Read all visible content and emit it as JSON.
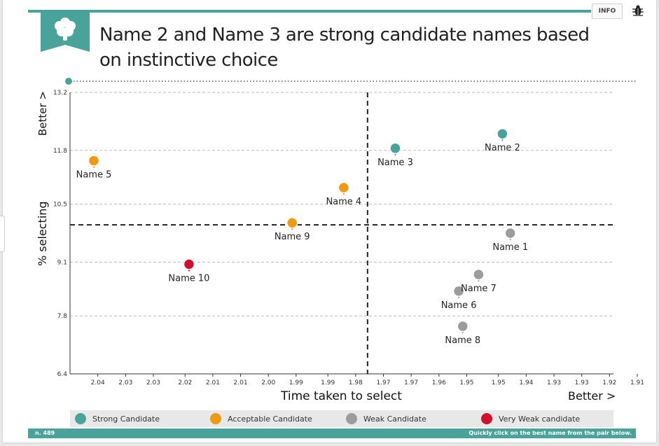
{
  "header": {
    "title_line1": "Name 2 and Name 3 are strong candidate names based",
    "title_line2": "on instinctive choice",
    "info_label": "INFO",
    "logo_icon": "brain-icon",
    "bug_icon": "bug-icon",
    "accent_color": "#4aa39a"
  },
  "footer": {
    "left_text": "n. 489",
    "right_text": "Quickly click on the best name from the pair below."
  },
  "legend": [
    {
      "label": "Strong Candidate",
      "color": "#4aa39a"
    },
    {
      "label": "Acceptable Candidate",
      "color": "#f09a11"
    },
    {
      "label": "Weak Candidate",
      "color": "#9c9c9c"
    },
    {
      "label": "Very Weak candidate",
      "color": "#d0102c"
    }
  ],
  "chart_data": {
    "type": "scatter",
    "title": "Name 2 and Name 3 are strong candidate names based on instinctive choice",
    "xlabel": "Time taken to select",
    "ylabel": "% selecting",
    "x_better_label": "Better >",
    "y_better_label": "Better >",
    "x_reversed": true,
    "xlim": [
      2.047,
      1.91
    ],
    "ylim": [
      6.4,
      13.2
    ],
    "x_ticks": [
      "2.04",
      "2.03",
      "2.03",
      "2.02",
      "2.01",
      "2.01",
      "2.00",
      "1.99",
      "1.99",
      "1.98",
      "1.97",
      "1.97",
      "1.96",
      "1.95",
      "1.95",
      "1.94",
      "1.93",
      "1.93",
      "1.92",
      "1.91"
    ],
    "x_tick_values": [
      2.04,
      2.033,
      2.026,
      2.018,
      2.011,
      2.004,
      1.997,
      1.99,
      1.982,
      1.975,
      1.968,
      1.961,
      1.954,
      1.947,
      1.939,
      1.932,
      1.925,
      1.918,
      1.911,
      1.904
    ],
    "y_ticks": [
      6.4,
      7.8,
      9.1,
      10.5,
      11.8,
      13.2
    ],
    "grid": true,
    "ref_lines": {
      "x": 1.972,
      "y": 10.0
    },
    "legend_position": "bottom",
    "points": [
      {
        "name": "Name 1",
        "x": 1.936,
        "y": 9.8,
        "category": "Weak Candidate"
      },
      {
        "name": "Name 2",
        "x": 1.938,
        "y": 12.2,
        "category": "Strong Candidate"
      },
      {
        "name": "Name 3",
        "x": 1.965,
        "y": 11.85,
        "category": "Strong Candidate"
      },
      {
        "name": "Name 4",
        "x": 1.978,
        "y": 10.9,
        "category": "Acceptable Candidate"
      },
      {
        "name": "Name 5",
        "x": 2.041,
        "y": 11.55,
        "category": "Acceptable Candidate"
      },
      {
        "name": "Name 6",
        "x": 1.949,
        "y": 8.4,
        "category": "Weak Candidate"
      },
      {
        "name": "Name 7",
        "x": 1.944,
        "y": 8.8,
        "category": "Weak Candidate"
      },
      {
        "name": "Name 8",
        "x": 1.948,
        "y": 7.55,
        "category": "Weak Candidate"
      },
      {
        "name": "Name 9",
        "x": 1.991,
        "y": 10.05,
        "category": "Acceptable Candidate"
      },
      {
        "name": "Name 10",
        "x": 2.017,
        "y": 9.05,
        "category": "Very Weak candidate"
      }
    ]
  }
}
